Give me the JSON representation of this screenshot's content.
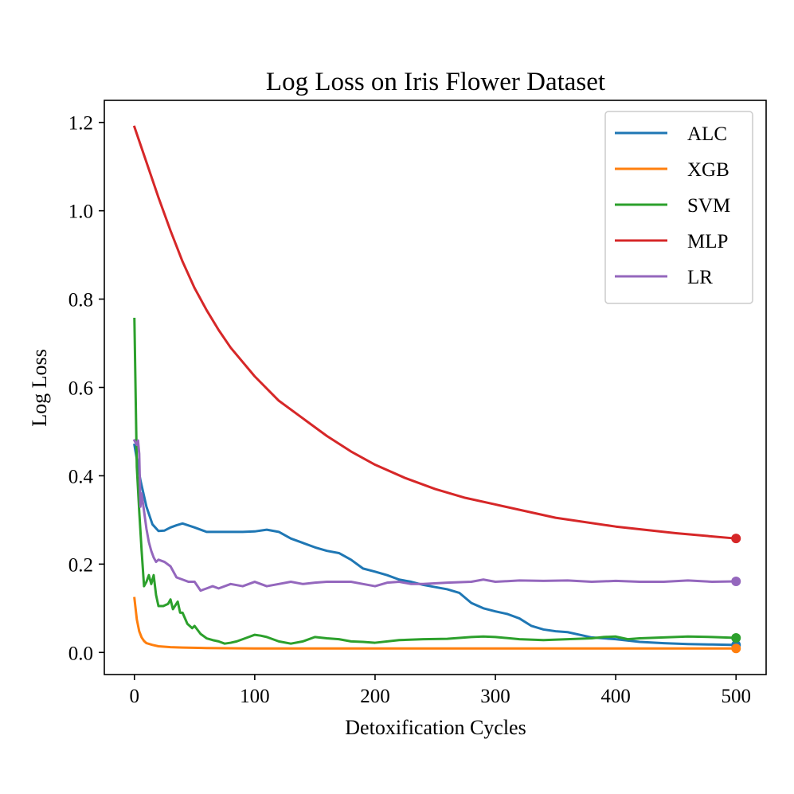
{
  "chart_data": {
    "type": "line",
    "title": "Log Loss on Iris Flower Dataset",
    "xlabel": "Detoxification Cycles",
    "ylabel": "Log Loss",
    "xlim": [
      -25,
      525
    ],
    "ylim": [
      -0.05,
      1.25
    ],
    "xticks": [
      0,
      100,
      200,
      300,
      400,
      500
    ],
    "yticks": [
      0.0,
      0.2,
      0.4,
      0.6,
      0.8,
      1.0,
      1.2
    ],
    "xtick_labels": [
      "0",
      "100",
      "200",
      "300",
      "400",
      "500"
    ],
    "ytick_labels": [
      "0.0",
      "0.2",
      "0.4",
      "0.6",
      "0.8",
      "1.0",
      "1.2"
    ],
    "grid": false,
    "legend": "top-right",
    "end_markers": true,
    "series": [
      {
        "name": "ALC",
        "color": "#1f77b4",
        "x": [
          0,
          5,
          10,
          15,
          20,
          25,
          30,
          35,
          40,
          50,
          60,
          80,
          90,
          100,
          110,
          120,
          130,
          140,
          150,
          160,
          170,
          180,
          190,
          200,
          210,
          220,
          230,
          240,
          250,
          260,
          270,
          280,
          290,
          300,
          310,
          320,
          330,
          340,
          350,
          360,
          370,
          380,
          390,
          400,
          420,
          440,
          460,
          480,
          500
        ],
        "y": [
          0.47,
          0.39,
          0.33,
          0.29,
          0.275,
          0.276,
          0.283,
          0.288,
          0.292,
          0.283,
          0.273,
          0.273,
          0.273,
          0.274,
          0.278,
          0.273,
          0.258,
          0.248,
          0.238,
          0.23,
          0.225,
          0.21,
          0.19,
          0.183,
          0.175,
          0.165,
          0.16,
          0.153,
          0.148,
          0.143,
          0.135,
          0.112,
          0.1,
          0.093,
          0.087,
          0.077,
          0.06,
          0.052,
          0.048,
          0.046,
          0.04,
          0.034,
          0.032,
          0.03,
          0.024,
          0.021,
          0.019,
          0.018,
          0.017
        ]
      },
      {
        "name": "XGB",
        "color": "#ff7f0e",
        "x": [
          0,
          2,
          4,
          6,
          8,
          10,
          15,
          20,
          30,
          40,
          60,
          80,
          100,
          150,
          200,
          300,
          400,
          500
        ],
        "y": [
          0.123,
          0.075,
          0.048,
          0.034,
          0.026,
          0.021,
          0.017,
          0.014,
          0.012,
          0.011,
          0.01,
          0.0095,
          0.009,
          0.009,
          0.009,
          0.009,
          0.009,
          0.009
        ]
      },
      {
        "name": "SVM",
        "color": "#2ca02c",
        "x": [
          0,
          2,
          4,
          6,
          8,
          10,
          12,
          14,
          16,
          18,
          20,
          24,
          28,
          30,
          32,
          36,
          38,
          40,
          44,
          48,
          50,
          55,
          60,
          65,
          70,
          75,
          80,
          85,
          90,
          95,
          100,
          105,
          110,
          115,
          120,
          130,
          140,
          150,
          160,
          170,
          180,
          190,
          200,
          220,
          240,
          260,
          280,
          290,
          300,
          320,
          340,
          360,
          380,
          390,
          400,
          410,
          420,
          440,
          460,
          480,
          500
        ],
        "y": [
          0.755,
          0.42,
          0.32,
          0.23,
          0.15,
          0.16,
          0.175,
          0.155,
          0.175,
          0.13,
          0.105,
          0.105,
          0.11,
          0.12,
          0.098,
          0.115,
          0.09,
          0.09,
          0.065,
          0.055,
          0.06,
          0.042,
          0.032,
          0.028,
          0.025,
          0.02,
          0.022,
          0.025,
          0.03,
          0.035,
          0.04,
          0.038,
          0.035,
          0.03,
          0.025,
          0.02,
          0.025,
          0.035,
          0.032,
          0.03,
          0.025,
          0.024,
          0.022,
          0.028,
          0.03,
          0.031,
          0.035,
          0.036,
          0.035,
          0.03,
          0.028,
          0.03,
          0.032,
          0.035,
          0.036,
          0.03,
          0.032,
          0.034,
          0.036,
          0.035,
          0.033
        ]
      },
      {
        "name": "MLP",
        "color": "#d62728",
        "x": [
          0,
          10,
          20,
          30,
          40,
          50,
          60,
          70,
          80,
          100,
          120,
          140,
          160,
          180,
          200,
          225,
          250,
          275,
          300,
          350,
          400,
          450,
          500
        ],
        "y": [
          1.19,
          1.11,
          1.03,
          0.955,
          0.885,
          0.825,
          0.775,
          0.73,
          0.69,
          0.625,
          0.57,
          0.53,
          0.49,
          0.455,
          0.425,
          0.395,
          0.37,
          0.35,
          0.335,
          0.305,
          0.285,
          0.27,
          0.258
        ]
      },
      {
        "name": "LR",
        "color": "#9467bd",
        "x": [
          0,
          2,
          3,
          4,
          5,
          6,
          8,
          10,
          12,
          14,
          16,
          18,
          20,
          25,
          30,
          35,
          40,
          45,
          50,
          55,
          60,
          65,
          70,
          80,
          90,
          100,
          110,
          120,
          130,
          140,
          150,
          160,
          170,
          180,
          190,
          200,
          210,
          220,
          230,
          240,
          260,
          280,
          290,
          300,
          320,
          340,
          360,
          380,
          400,
          420,
          440,
          460,
          480,
          500
        ],
        "y": [
          0.48,
          0.47,
          0.48,
          0.45,
          0.33,
          0.36,
          0.32,
          0.28,
          0.25,
          0.23,
          0.215,
          0.205,
          0.21,
          0.205,
          0.195,
          0.17,
          0.165,
          0.16,
          0.16,
          0.14,
          0.145,
          0.15,
          0.145,
          0.155,
          0.15,
          0.16,
          0.15,
          0.155,
          0.16,
          0.155,
          0.158,
          0.16,
          0.16,
          0.16,
          0.155,
          0.15,
          0.158,
          0.16,
          0.155,
          0.155,
          0.158,
          0.16,
          0.165,
          0.16,
          0.163,
          0.162,
          0.163,
          0.16,
          0.162,
          0.16,
          0.16,
          0.163,
          0.16,
          0.161
        ]
      }
    ]
  }
}
